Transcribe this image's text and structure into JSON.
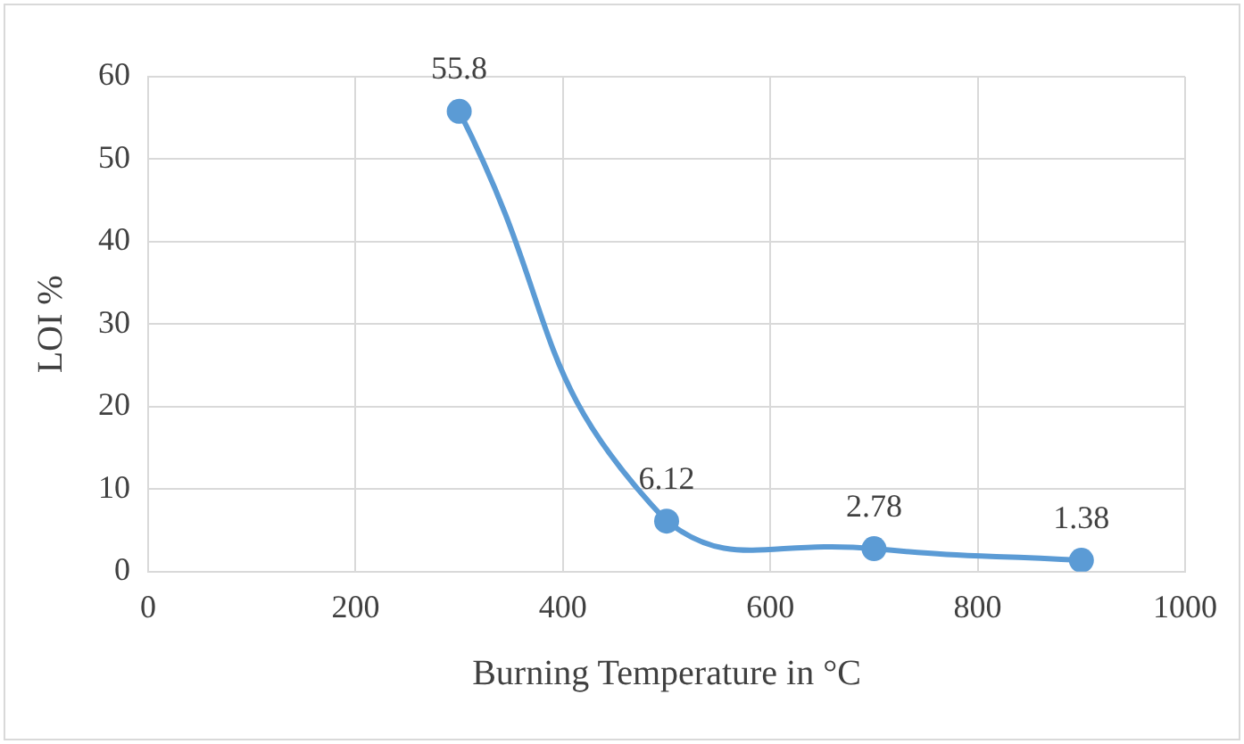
{
  "chart_data": {
    "type": "line",
    "xlabel": "Burning Temperature in °C",
    "ylabel": "LOI %",
    "x": [
      300,
      500,
      700,
      900
    ],
    "series": [
      {
        "color": "#5b9bd5",
        "values": [
          55.8,
          6.12,
          2.78,
          1.38
        ]
      }
    ],
    "xlim": [
      0,
      1000
    ],
    "xticks": [
      0,
      200,
      400,
      600,
      800,
      1000
    ],
    "ylim": [
      0,
      60
    ],
    "yticks": [
      0,
      10,
      20,
      30,
      40,
      50,
      60
    ],
    "grid": true,
    "legend": false,
    "marker": "circle",
    "line_style": "solid",
    "data_labels": true
  }
}
